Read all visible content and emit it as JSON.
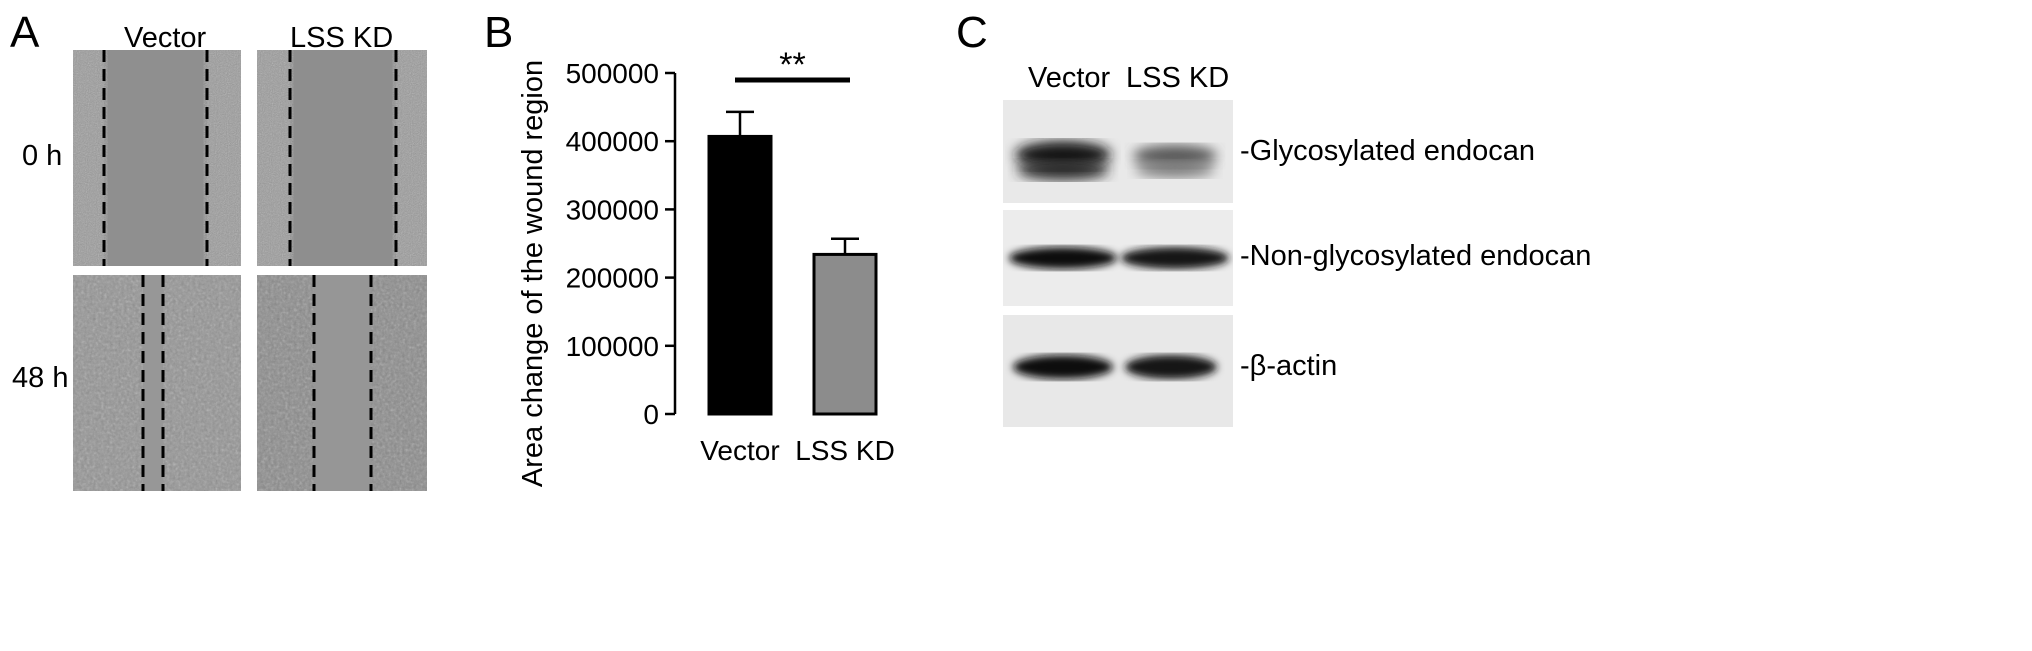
{
  "panels": {
    "a": {
      "letter": "A",
      "columns": [
        "Vector",
        "LSS KD"
      ],
      "rows": [
        "0 h",
        "48 h"
      ]
    },
    "b": {
      "letter": "B"
    },
    "c": {
      "letter": "C",
      "lanes": [
        "Vector",
        "LSS KD"
      ],
      "bands": [
        "-Glycosylated endocan",
        "-Non-glycosylated endocan",
        "-β-actin"
      ]
    }
  },
  "chart_data": {
    "type": "bar",
    "title": "",
    "categories": [
      "Vector",
      "LSS KD"
    ],
    "values": [
      407000,
      234000
    ],
    "errors": [
      36000,
      23000
    ],
    "bar_colors": [
      "#000000",
      "#8c8c8c"
    ],
    "xlabel": "",
    "ylabel": "Area change of the wound region",
    "ylim": [
      0,
      500000
    ],
    "yticks": [
      0,
      100000,
      200000,
      300000,
      400000,
      500000
    ],
    "ytick_labels": [
      "0",
      "100000",
      "200000",
      "300000",
      "400000",
      "500000"
    ],
    "significance": {
      "label": "**",
      "between": [
        "Vector",
        "LSS KD"
      ]
    },
    "grid": false,
    "legend": "none"
  }
}
